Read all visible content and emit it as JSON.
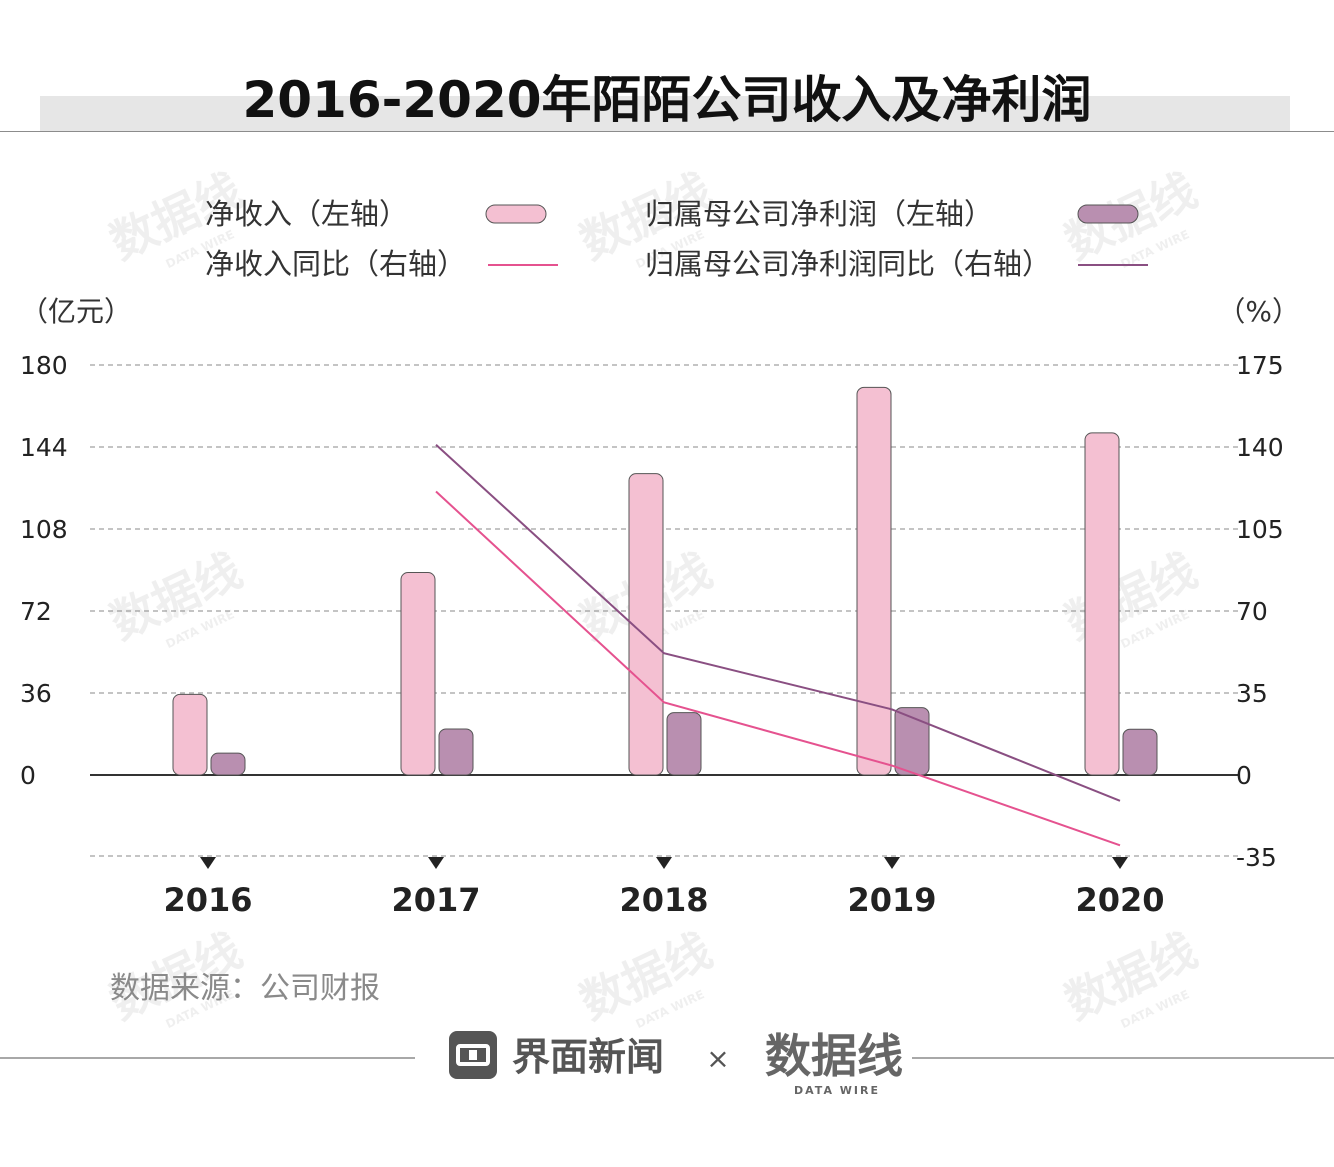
{
  "title": "2016-2020年陌陌公司收入及净利润",
  "chart_data": {
    "type": "bar",
    "categories": [
      "2016",
      "2017",
      "2018",
      "2019",
      "2020"
    ],
    "left_axis": {
      "unit": "（亿元）",
      "ylim": [
        0,
        180
      ],
      "ticks": [
        "180",
        "144",
        "108",
        "72",
        "36",
        "0"
      ]
    },
    "right_axis": {
      "unit": "（%）",
      "ylim": [
        -35,
        175
      ],
      "ticks": [
        "175",
        "140",
        "105",
        "70",
        "35",
        "0",
        "-35"
      ]
    },
    "series": [
      {
        "name": "净收入（左轴）",
        "kind": "bar",
        "axis": "left",
        "color": "#f4c0d2",
        "values": [
          35.4,
          88.9,
          132.3,
          170.2,
          150.2
        ]
      },
      {
        "name": "归属母公司净利润（左轴）",
        "kind": "bar",
        "axis": "left",
        "color": "#b98fb0",
        "values": [
          9.6,
          20.2,
          27.4,
          29.6,
          20.1
        ]
      },
      {
        "name": "净收入同比（右轴）",
        "kind": "line",
        "axis": "right",
        "color": "#e5528f",
        "values": [
          null,
          121,
          31,
          4,
          -30
        ]
      },
      {
        "name": "归属母公司净利润同比（右轴）",
        "kind": "line",
        "axis": "right",
        "color": "#8a4f82",
        "values": [
          null,
          141,
          52,
          28,
          -11
        ]
      }
    ],
    "grid": true,
    "legend": "top"
  },
  "source": "数据来源：公司财报",
  "brand": {
    "left": "界面新闻",
    "sep": "×",
    "right": "数据线",
    "right_sub": "DATA WIRE"
  },
  "watermark": {
    "text": "数据线",
    "sub": "DATA WIRE"
  }
}
